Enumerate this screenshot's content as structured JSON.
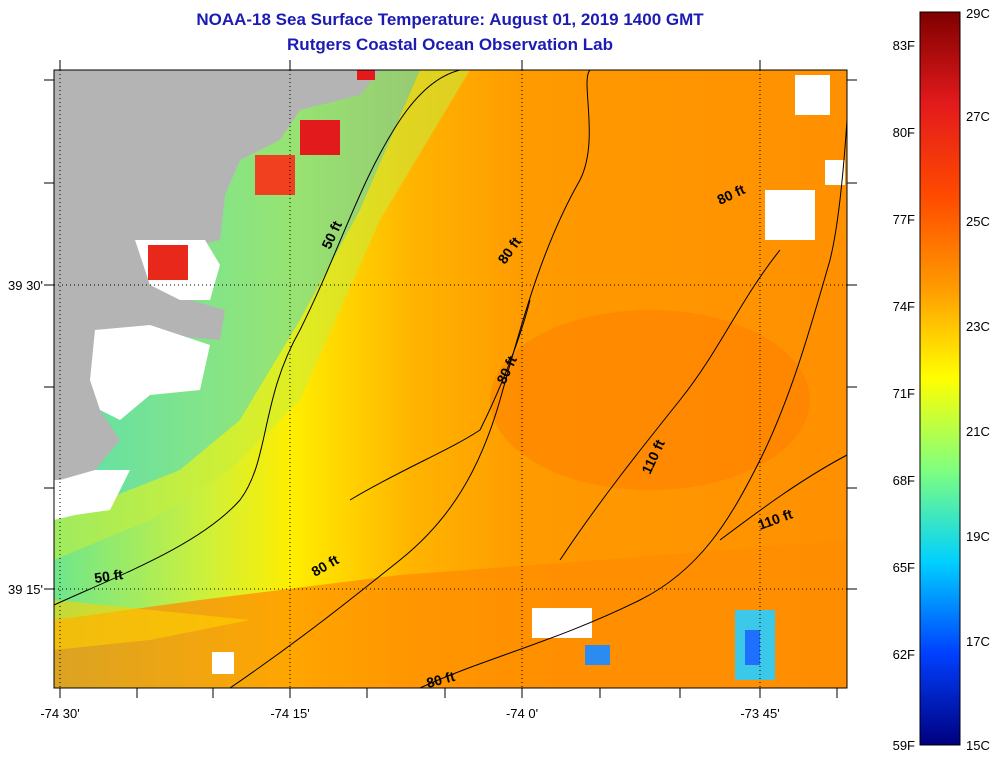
{
  "title": {
    "line1": "NOAA-18 Sea Surface Temperature:  August 01, 2019 1400 GMT",
    "line2": "Rutgers Coastal Ocean Observation Lab"
  },
  "colors": {
    "title": "#1c1cb4",
    "land": "#b4b4b4",
    "nodata": "#ffffff",
    "contour": "#000000"
  },
  "axes": {
    "lat_labels": [
      "39 30'",
      "39 15'"
    ],
    "lon_labels": [
      "-74 30'",
      "-74 15'",
      "-74 0'",
      "-73 45'"
    ]
  },
  "contour_labels": [
    "50 ft",
    "80 ft",
    "80 ft",
    "80 ft",
    "110 ft",
    "110 ft",
    "50 ft",
    "80 ft",
    "80 ft"
  ],
  "colorbar": {
    "fahrenheit": [
      "83F",
      "80F",
      "77F",
      "74F",
      "71F",
      "68F",
      "65F",
      "62F",
      "59F"
    ],
    "celsius": [
      "29C",
      "27C",
      "25C",
      "23C",
      "21C",
      "19C",
      "17C",
      "15C"
    ],
    "range_c": [
      15,
      29
    ]
  }
}
